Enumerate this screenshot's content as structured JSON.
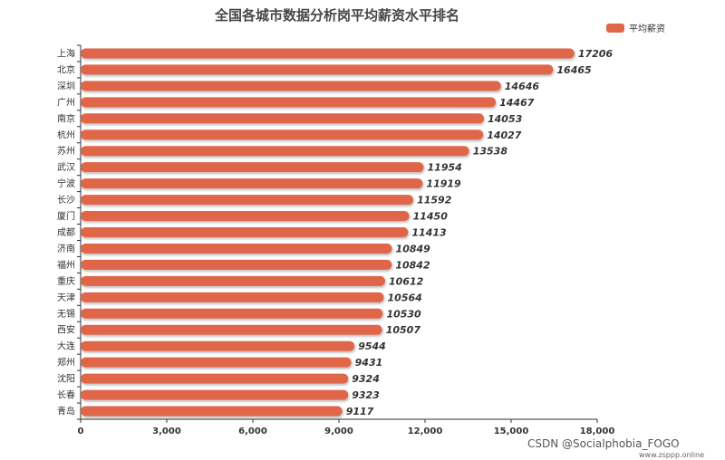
{
  "chart_data": {
    "type": "bar",
    "orientation": "horizontal",
    "title": "全国各城市数据分析岗平均薪资水平排名",
    "categories": [
      "上海",
      "北京",
      "深圳",
      "广州",
      "南京",
      "杭州",
      "苏州",
      "武汉",
      "宁波",
      "长沙",
      "厦门",
      "成都",
      "济南",
      "福州",
      "重庆",
      "天津",
      "无锡",
      "西安",
      "大连",
      "郑州",
      "沈阳",
      "长春",
      "青岛"
    ],
    "series": [
      {
        "name": "平均薪资",
        "values": [
          17206,
          16465,
          14646,
          14467,
          14053,
          14027,
          13538,
          11954,
          11919,
          11592,
          11450,
          11413,
          10849,
          10842,
          10612,
          10564,
          10530,
          10507,
          9544,
          9431,
          9324,
          9323,
          9117
        ],
        "color": "#e0664a"
      }
    ],
    "xlim": [
      0,
      18000
    ],
    "xticks": [
      0,
      3000,
      6000,
      9000,
      12000,
      15000,
      18000
    ],
    "xtick_labels": [
      "0",
      "3,000",
      "6,000",
      "9,000",
      "12,000",
      "15,000",
      "18,000"
    ],
    "legend_position": "top-right",
    "grid": false,
    "data_labels": true
  },
  "watermark": {
    "main": "CSDN @Socialphobia_FOGO",
    "small": "www.zsppp.online"
  }
}
